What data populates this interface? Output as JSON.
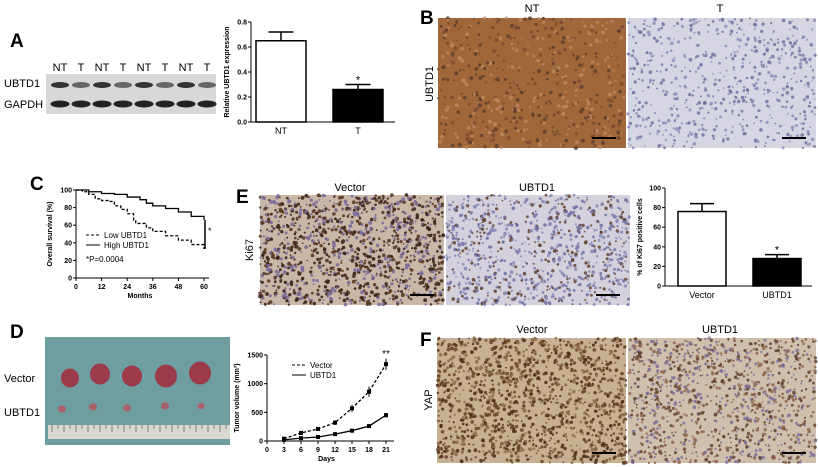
{
  "panels": {
    "A": {
      "label": "A",
      "blot_lanes": [
        "NT",
        "T",
        "NT",
        "T",
        "NT",
        "T",
        "NT",
        "T"
      ],
      "blot_rows": [
        "UBTD1",
        "GAPDH"
      ]
    },
    "B": {
      "label": "B",
      "columns": [
        "NT",
        "T"
      ],
      "row_label": "UBTD1"
    },
    "C": {
      "label": "C",
      "p_value": "*P=0.0004"
    },
    "D": {
      "label": "D",
      "rows": [
        "Vector",
        "UBTD1"
      ]
    },
    "E": {
      "label": "E",
      "columns": [
        "Vector",
        "UBTD1"
      ],
      "row_label": "Ki67"
    },
    "F": {
      "label": "F",
      "columns": [
        "Vector",
        "UBTD1"
      ],
      "row_label": "YAP"
    }
  },
  "stain_colors": {
    "brown": "#a0683a",
    "hematoxylin": "#b9b9d6"
  },
  "chart_data": [
    {
      "id": "A",
      "type": "bar",
      "categories": [
        "NT",
        "T"
      ],
      "values": [
        0.65,
        0.26
      ],
      "errors": [
        0.07,
        0.04
      ],
      "fills": [
        "#ffffff",
        "#000000"
      ],
      "ylabel": "Relative UBTD1 expression",
      "ylim": [
        0,
        0.8
      ],
      "yticks": [
        "0.0",
        "0.2",
        "0.4",
        "0.6",
        "0.8"
      ],
      "annotations": [
        "*"
      ]
    },
    {
      "id": "C",
      "type": "line",
      "xlabel": "Months",
      "ylabel": "Overall survival (%)",
      "xlim": [
        0,
        60
      ],
      "ylim": [
        0,
        100
      ],
      "xticks": [
        "0",
        "12",
        "24",
        "36",
        "48",
        "60"
      ],
      "yticks": [
        "0",
        "20",
        "40",
        "60",
        "80",
        "100"
      ],
      "series": [
        {
          "name": "Low UBTD1",
          "style": "dashed",
          "x": [
            0,
            3,
            6,
            9,
            12,
            15,
            18,
            21,
            24,
            27,
            28,
            33,
            36,
            42,
            48,
            54,
            60
          ],
          "y": [
            100,
            98,
            95,
            90,
            88,
            87,
            82,
            78,
            73,
            66,
            62,
            57,
            53,
            48,
            43,
            38,
            33
          ]
        },
        {
          "name": "High UBTD1",
          "style": "solid",
          "x": [
            0,
            6,
            12,
            18,
            24,
            30,
            33,
            36,
            42,
            48,
            54,
            60
          ],
          "y": [
            100,
            98,
            96,
            95,
            92,
            89,
            85,
            82,
            79,
            75,
            70,
            66
          ]
        }
      ],
      "annotations": [
        "*"
      ]
    },
    {
      "id": "E",
      "type": "bar",
      "categories": [
        "Vector",
        "UBTD1"
      ],
      "values": [
        76,
        28
      ],
      "errors": [
        8,
        4
      ],
      "fills": [
        "#ffffff",
        "#000000"
      ],
      "ylabel": "% of Ki67 positive cells",
      "ylim": [
        0,
        100
      ],
      "yticks": [
        "0",
        "20",
        "40",
        "60",
        "80",
        "100"
      ],
      "annotations": [
        "*"
      ]
    },
    {
      "id": "D",
      "type": "line",
      "xlabel": "Days",
      "ylabel": "Tumor volume (mm³)",
      "xlim": [
        0,
        21
      ],
      "ylim": [
        0,
        1500
      ],
      "xticks": [
        "0",
        "3",
        "6",
        "9",
        "12",
        "15",
        "18",
        "21"
      ],
      "yticks": [
        "0",
        "500",
        "1000",
        "1500"
      ],
      "series": [
        {
          "name": "Vector",
          "style": "dashed",
          "x": [
            3,
            6,
            9,
            12,
            15,
            18,
            21
          ],
          "y": [
            40,
            140,
            210,
            320,
            570,
            860,
            1340
          ],
          "errors": [
            20,
            15,
            30,
            40,
            60,
            90,
            100
          ]
        },
        {
          "name": "UBTD1",
          "style": "solid",
          "x": [
            3,
            6,
            9,
            12,
            15,
            18,
            21
          ],
          "y": [
            20,
            50,
            70,
            120,
            180,
            260,
            450
          ],
          "errors": [
            10,
            10,
            15,
            15,
            20,
            30,
            40
          ]
        }
      ],
      "annotations": [
        "**"
      ]
    }
  ]
}
